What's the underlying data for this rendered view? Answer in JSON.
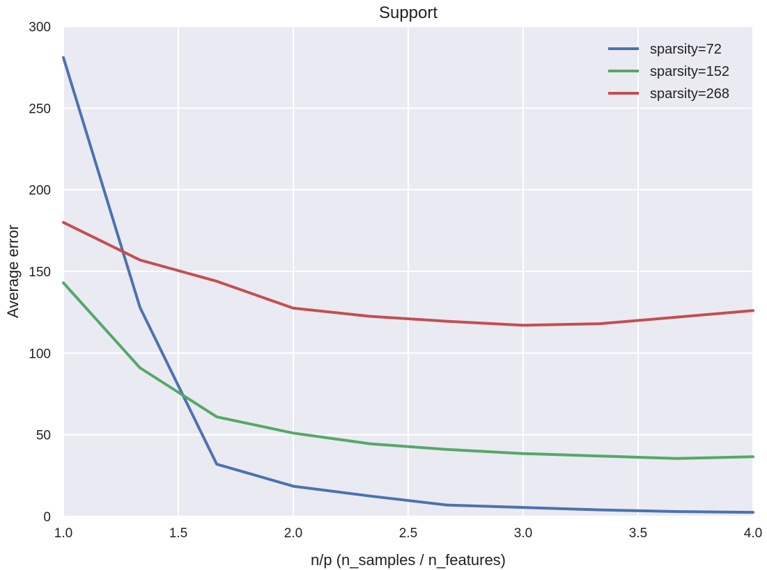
{
  "chart_data": {
    "type": "line",
    "title": "Support",
    "xlabel": "n/p (n_samples / n_features)",
    "ylabel": "Average error",
    "xlim": [
      1.0,
      4.0
    ],
    "ylim": [
      0,
      300
    ],
    "xticks": [
      "1.0",
      "1.5",
      "2.0",
      "2.5",
      "3.0",
      "3.5",
      "4.0"
    ],
    "yticks": [
      "0",
      "50",
      "100",
      "150",
      "200",
      "250",
      "300"
    ],
    "grid": true,
    "legend_position": "top-right",
    "x": [
      1.0,
      1.333,
      1.667,
      2.0,
      2.333,
      2.667,
      3.0,
      3.333,
      3.667,
      4.0
    ],
    "series": [
      {
        "name": "sparsity=72",
        "color": "#4c72b0",
        "values": [
          281,
          128,
          32,
          18.5,
          12.5,
          7,
          5.5,
          4,
          3,
          2.5
        ]
      },
      {
        "name": "sparsity=152",
        "color": "#55a868",
        "values": [
          143,
          91,
          61,
          51,
          44.5,
          41,
          38.5,
          37,
          35.5,
          36.5
        ]
      },
      {
        "name": "sparsity=268",
        "color": "#c44e52",
        "values": [
          180,
          157,
          144,
          127.5,
          122.5,
          119.5,
          117,
          118,
          122,
          126
        ]
      }
    ]
  }
}
